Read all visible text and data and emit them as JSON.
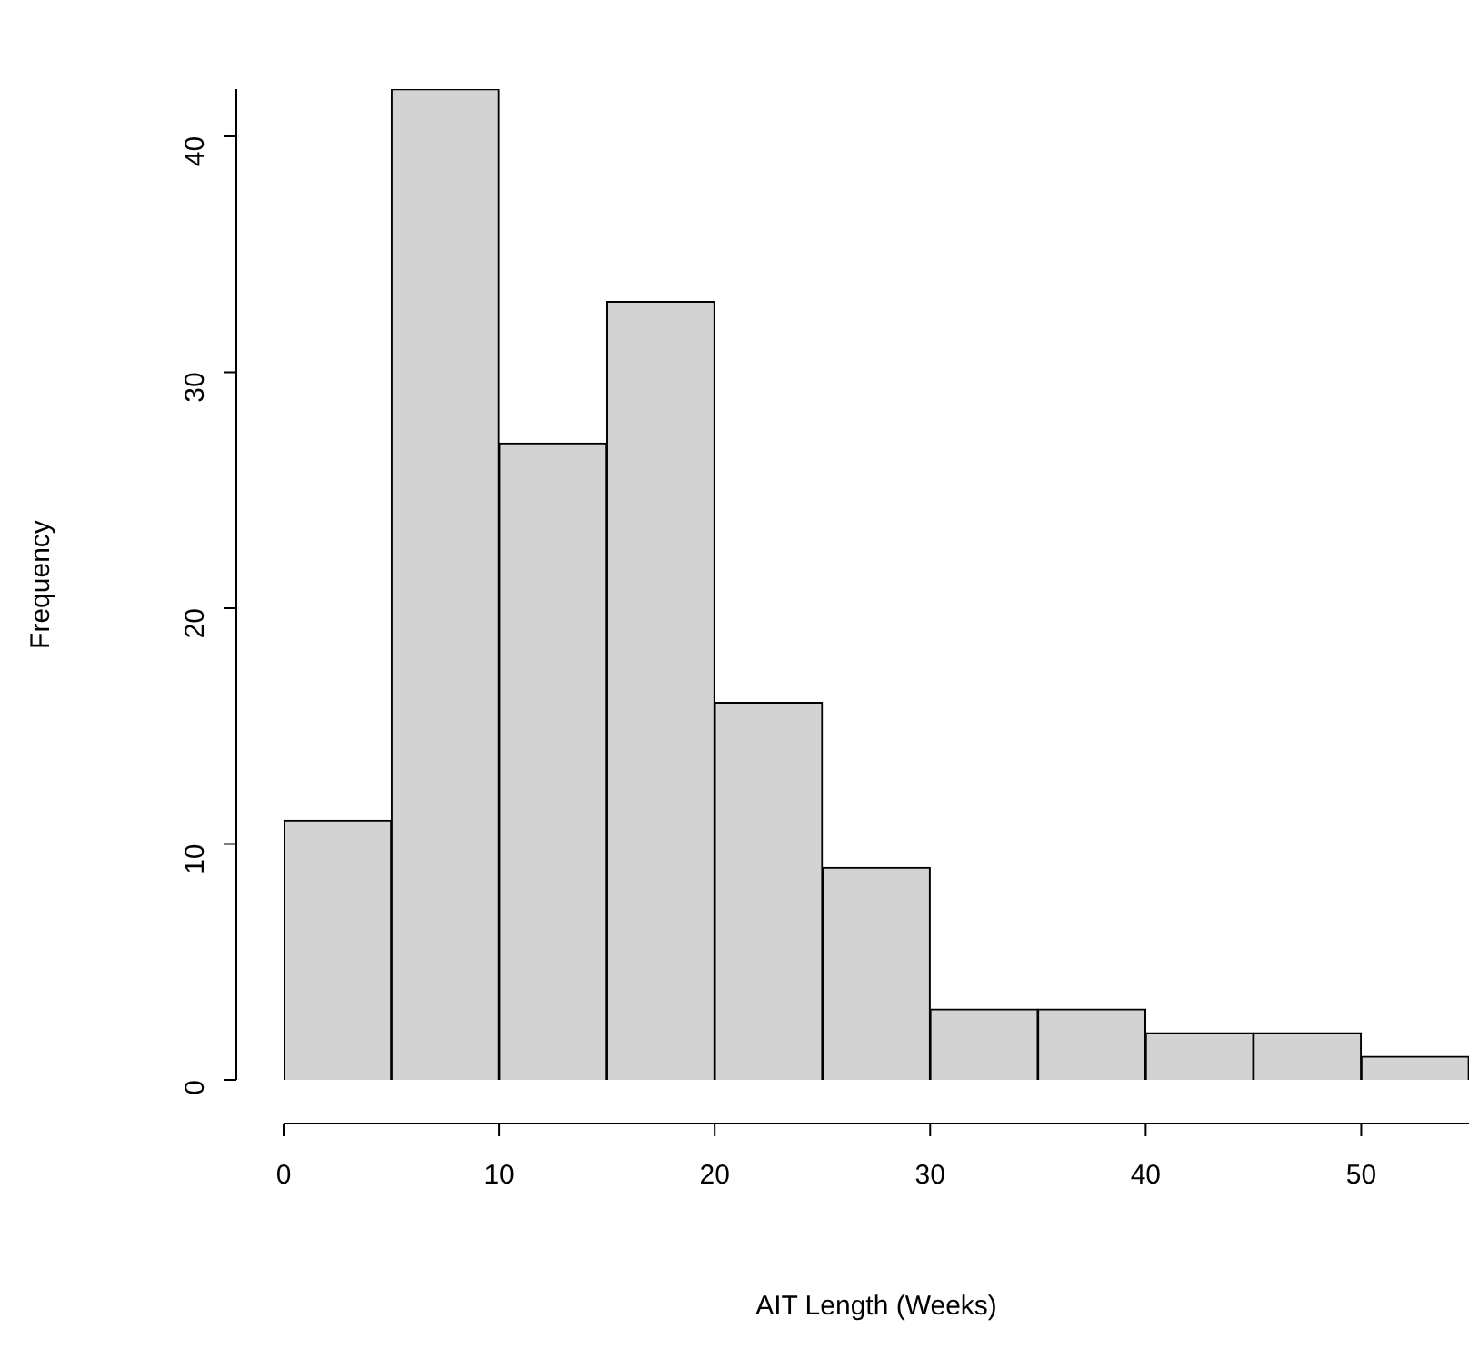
{
  "chart_data": {
    "type": "histogram",
    "xlabel": "AIT Length (Weeks)",
    "ylabel": "Frequency",
    "bins": [
      0,
      5,
      10,
      15,
      20,
      25,
      30,
      35,
      40,
      45,
      50,
      55
    ],
    "values": [
      11,
      42,
      27,
      33,
      16,
      9,
      3,
      3,
      2,
      2,
      1
    ],
    "color": "#d3d3d3",
    "xlim": [
      0,
      55
    ],
    "xticks": [
      0,
      10,
      20,
      30,
      40,
      50
    ],
    "ylim": [
      0,
      42
    ],
    "yticks": [
      0,
      10,
      20,
      30,
      40
    ],
    "grid": false,
    "legend": false
  }
}
